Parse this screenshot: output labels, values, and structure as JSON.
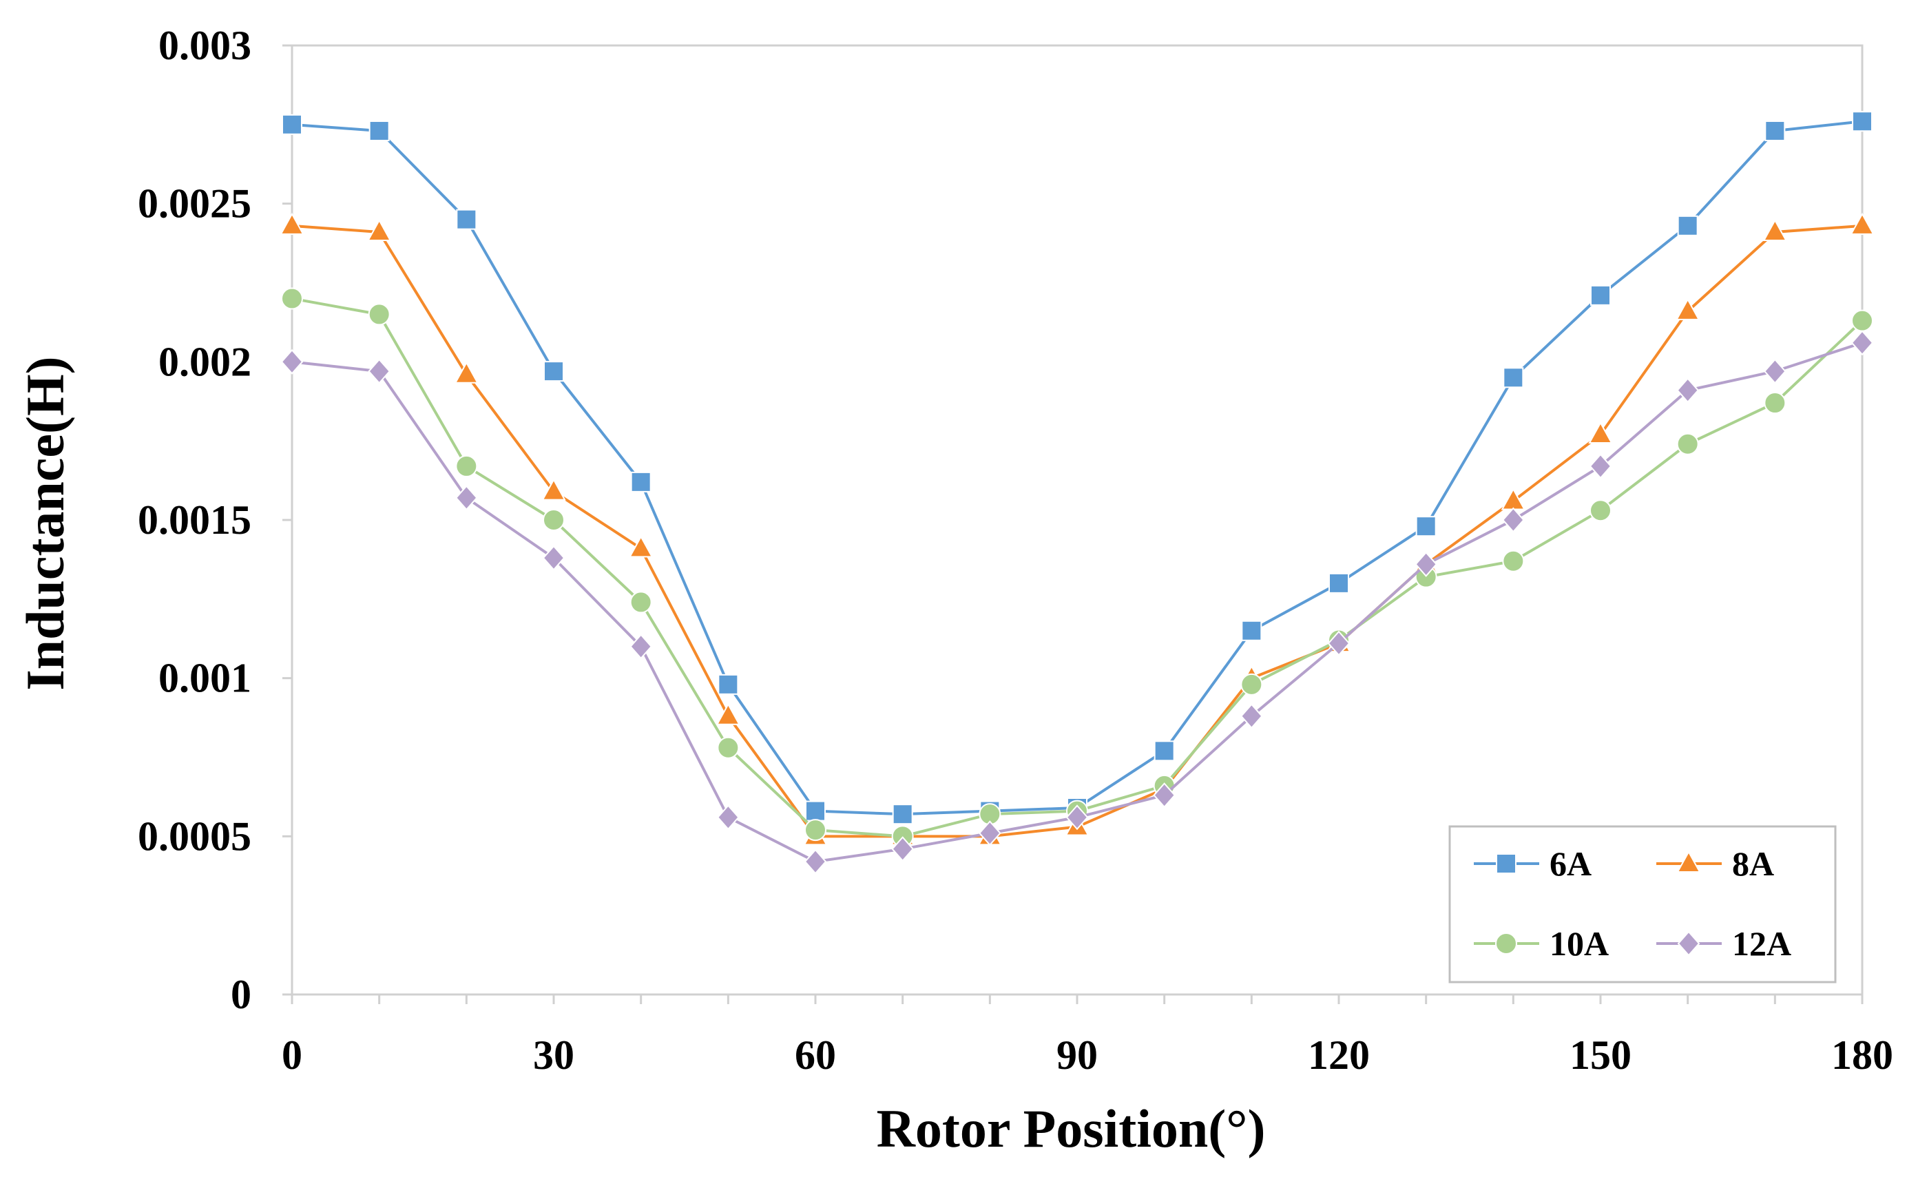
{
  "chart_data": {
    "type": "line",
    "title": "",
    "xlabel": "Rotor Position(°)",
    "ylabel": "Inductance(H)",
    "xlim": [
      0,
      180
    ],
    "ylim": [
      0,
      0.003
    ],
    "x_ticks": [
      0,
      30,
      60,
      90,
      120,
      150,
      180
    ],
    "x_tick_labels": [
      "0",
      "30",
      "60",
      "90",
      "120",
      "150",
      "180"
    ],
    "y_ticks": [
      0,
      0.0005,
      0.001,
      0.0015,
      0.002,
      0.0025,
      0.003
    ],
    "y_tick_labels": [
      "0",
      "0.0005",
      "0.001",
      "0.0015",
      "0.002",
      "0.0025",
      "0.003"
    ],
    "grid": false,
    "legend_position": "bottom-right",
    "x": [
      0,
      10,
      20,
      30,
      40,
      50,
      60,
      70,
      80,
      90,
      100,
      110,
      120,
      130,
      140,
      150,
      160,
      170,
      180
    ],
    "series": [
      {
        "name": "6A",
        "color": "#5b9bd5",
        "marker": "square",
        "values": [
          0.00275,
          0.00273,
          0.00245,
          0.00197,
          0.00162,
          0.00098,
          0.00058,
          0.00057,
          0.00058,
          0.00059,
          0.00077,
          0.00115,
          0.0013,
          0.00148,
          0.00195,
          0.00221,
          0.00243,
          0.00273,
          0.00276
        ]
      },
      {
        "name": "8A",
        "color": "#f58a2a",
        "marker": "triangle",
        "values": [
          0.00243,
          0.00241,
          0.00196,
          0.00159,
          0.00141,
          0.00088,
          0.0005,
          0.0005,
          0.0005,
          0.00053,
          0.00065,
          0.001,
          0.00111,
          0.00136,
          0.00156,
          0.00177,
          0.00216,
          0.00241,
          0.00243
        ]
      },
      {
        "name": "10A",
        "color": "#a9d18e",
        "marker": "circle",
        "values": [
          0.0022,
          0.00215,
          0.00167,
          0.0015,
          0.00124,
          0.00078,
          0.00052,
          0.0005,
          0.00057,
          0.00058,
          0.00066,
          0.00098,
          0.00112,
          0.00132,
          0.00137,
          0.00153,
          0.00174,
          0.00187,
          0.00213
        ]
      },
      {
        "name": "12A",
        "color": "#b4a0cb",
        "marker": "diamond",
        "values": [
          0.002,
          0.00197,
          0.00157,
          0.00138,
          0.0011,
          0.00056,
          0.00042,
          0.00046,
          0.00051,
          0.00056,
          0.00063,
          0.00088,
          0.00111,
          0.00136,
          0.0015,
          0.00167,
          0.00191,
          0.00197,
          0.00206
        ]
      }
    ]
  }
}
